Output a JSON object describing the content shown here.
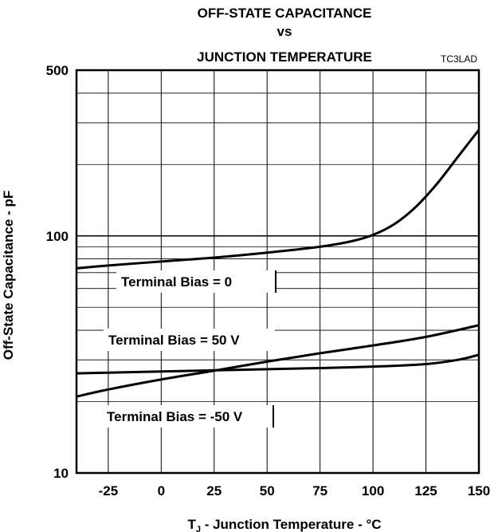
{
  "chart_data": {
    "type": "line",
    "title_lines": [
      "OFF-STATE CAPACITANCE",
      "vs",
      "JUNCTION TEMPERATURE"
    ],
    "ref_code": "TC3LAD",
    "xlabel_main": "T",
    "xlabel_sub": "J",
    "xlabel_rest": " - Junction Temperature - °C",
    "ylabel": "Off-State Capacitance - pF",
    "xlim": [
      -40,
      150
    ],
    "ylim": [
      10,
      500
    ],
    "yscale": "log",
    "grid": true,
    "x_ticks": [
      -25,
      0,
      25,
      50,
      75,
      100,
      125,
      150
    ],
    "x_tick_labels": [
      "-25",
      "0",
      "25",
      "50",
      "75",
      "100",
      "125",
      "150"
    ],
    "y_tick_labels": [
      {
        "value": 500,
        "label": "500"
      },
      {
        "value": 100,
        "label": "100"
      },
      {
        "value": 10,
        "label": "10"
      }
    ],
    "series": [
      {
        "name": "Terminal Bias = 0",
        "x": [
          -40,
          -25,
          0,
          25,
          50,
          75,
          90,
          100,
          110,
          120,
          130,
          140,
          150
        ],
        "y": [
          73,
          75,
          78,
          81,
          85,
          90,
          95,
          101,
          112,
          132,
          165,
          215,
          280
        ]
      },
      {
        "name": "Terminal Bias = 50 V",
        "x": [
          -40,
          -25,
          0,
          25,
          50,
          75,
          100,
          125,
          150
        ],
        "y": [
          21,
          22.5,
          24.8,
          27,
          29.5,
          32,
          34.5,
          37.5,
          42
        ]
      },
      {
        "name": "Terminal Bias = -50 V",
        "x": [
          -40,
          -25,
          0,
          25,
          50,
          75,
          100,
          125,
          140,
          150
        ],
        "y": [
          26.3,
          26.5,
          26.8,
          27.1,
          27.4,
          27.7,
          28.1,
          28.8,
          30,
          31.5
        ]
      }
    ]
  }
}
